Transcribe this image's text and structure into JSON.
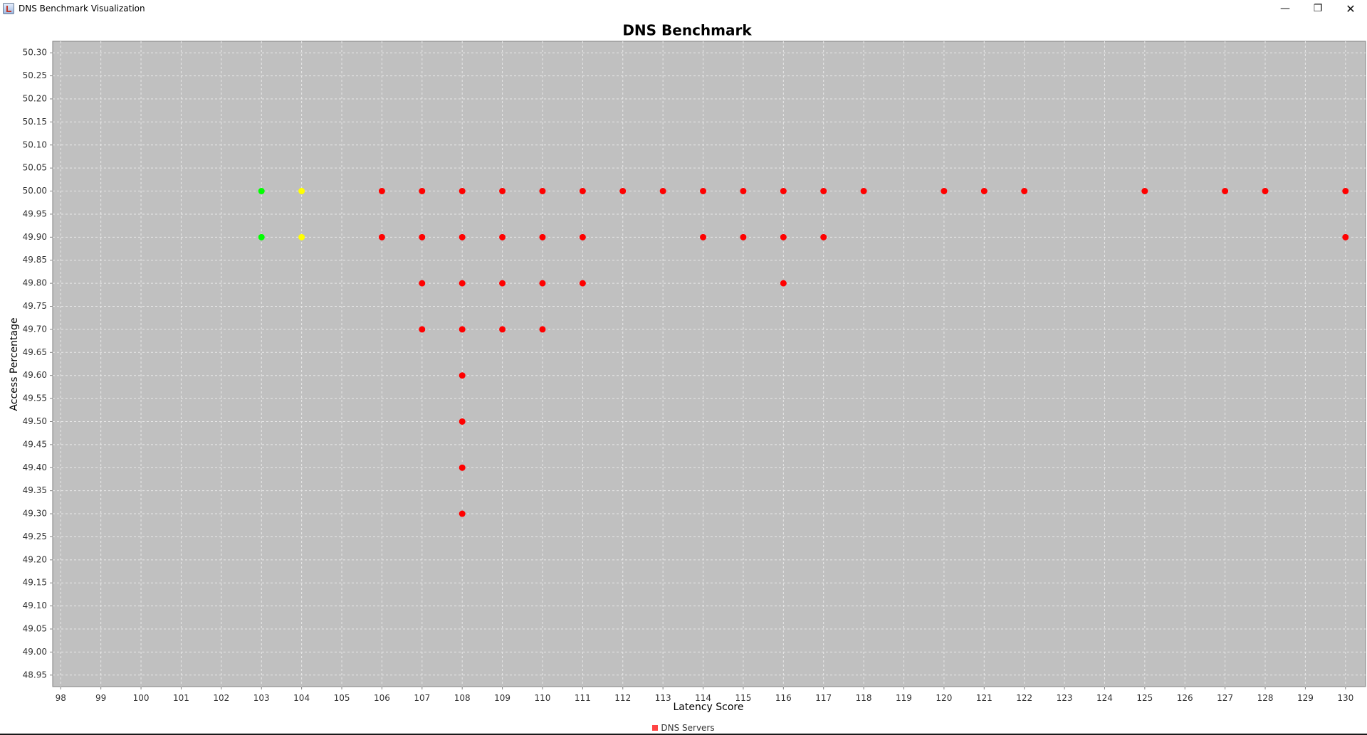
{
  "window": {
    "title": "DNS Benchmark Visualization",
    "minimize_glyph": "—",
    "restore_glyph": "❐",
    "close_glyph": "✕"
  },
  "colors": {
    "plot_bg": "#c0c0c0",
    "grid": "#e8e8e8",
    "best": "#00ff00",
    "second": "#ffff00",
    "normal": "#ff0000"
  },
  "legend": {
    "label": "DNS Servers",
    "swatch_color": "#ff4444"
  },
  "chart_data": {
    "type": "scatter",
    "title": "DNS Benchmark",
    "xlabel": "Latency Score",
    "ylabel": "Access Percentage",
    "xlim": [
      97.8,
      130.5
    ],
    "ylim": [
      48.925,
      50.325
    ],
    "x_ticks": [
      98,
      99,
      100,
      101,
      102,
      103,
      104,
      105,
      106,
      107,
      108,
      109,
      110,
      111,
      112,
      113,
      114,
      115,
      116,
      117,
      118,
      119,
      120,
      121,
      122,
      123,
      124,
      125,
      126,
      127,
      128,
      129,
      130
    ],
    "y_ticks": [
      "50.30",
      "50.25",
      "50.20",
      "50.15",
      "50.10",
      "50.05",
      "50.00",
      "49.95",
      "49.90",
      "49.85",
      "49.80",
      "49.75",
      "49.70",
      "49.65",
      "49.60",
      "49.55",
      "49.50",
      "49.45",
      "49.40",
      "49.35",
      "49.30",
      "49.25",
      "49.20",
      "49.15",
      "49.10",
      "49.05",
      "49.00",
      "48.95"
    ],
    "grid": true,
    "legend_position": "bottom-center",
    "points": [
      {
        "x": 103,
        "y": 50.0,
        "color": "#00ff00"
      },
      {
        "x": 103,
        "y": 49.9,
        "color": "#00ff00"
      },
      {
        "x": 104,
        "y": 50.0,
        "color": "#ffff00"
      },
      {
        "x": 104,
        "y": 49.9,
        "color": "#ffff00"
      },
      {
        "x": 106,
        "y": 50.0,
        "color": "#ff0000"
      },
      {
        "x": 106,
        "y": 49.9,
        "color": "#ff0000"
      },
      {
        "x": 107,
        "y": 50.0,
        "color": "#ff0000"
      },
      {
        "x": 107,
        "y": 49.9,
        "color": "#ff0000"
      },
      {
        "x": 107,
        "y": 49.8,
        "color": "#ff0000"
      },
      {
        "x": 107,
        "y": 49.7,
        "color": "#ff0000"
      },
      {
        "x": 108,
        "y": 50.0,
        "color": "#ff0000"
      },
      {
        "x": 108,
        "y": 49.9,
        "color": "#ff0000"
      },
      {
        "x": 108,
        "y": 49.8,
        "color": "#ff0000"
      },
      {
        "x": 108,
        "y": 49.7,
        "color": "#ff0000"
      },
      {
        "x": 108,
        "y": 49.6,
        "color": "#ff0000"
      },
      {
        "x": 108,
        "y": 49.5,
        "color": "#ff0000"
      },
      {
        "x": 108,
        "y": 49.4,
        "color": "#ff0000"
      },
      {
        "x": 108,
        "y": 49.3,
        "color": "#ff0000"
      },
      {
        "x": 109,
        "y": 50.0,
        "color": "#ff0000"
      },
      {
        "x": 109,
        "y": 49.9,
        "color": "#ff0000"
      },
      {
        "x": 109,
        "y": 49.8,
        "color": "#ff0000"
      },
      {
        "x": 109,
        "y": 49.7,
        "color": "#ff0000"
      },
      {
        "x": 110,
        "y": 50.0,
        "color": "#ff0000"
      },
      {
        "x": 110,
        "y": 49.9,
        "color": "#ff0000"
      },
      {
        "x": 110,
        "y": 49.8,
        "color": "#ff0000"
      },
      {
        "x": 110,
        "y": 49.7,
        "color": "#ff0000"
      },
      {
        "x": 111,
        "y": 50.0,
        "color": "#ff0000"
      },
      {
        "x": 111,
        "y": 49.9,
        "color": "#ff0000"
      },
      {
        "x": 111,
        "y": 49.8,
        "color": "#ff0000"
      },
      {
        "x": 112,
        "y": 50.0,
        "color": "#ff0000"
      },
      {
        "x": 113,
        "y": 50.0,
        "color": "#ff0000"
      },
      {
        "x": 114,
        "y": 50.0,
        "color": "#ff0000"
      },
      {
        "x": 114,
        "y": 49.9,
        "color": "#ff0000"
      },
      {
        "x": 115,
        "y": 50.0,
        "color": "#ff0000"
      },
      {
        "x": 115,
        "y": 49.9,
        "color": "#ff0000"
      },
      {
        "x": 116,
        "y": 50.0,
        "color": "#ff0000"
      },
      {
        "x": 116,
        "y": 49.9,
        "color": "#ff0000"
      },
      {
        "x": 116,
        "y": 49.8,
        "color": "#ff0000"
      },
      {
        "x": 117,
        "y": 50.0,
        "color": "#ff0000"
      },
      {
        "x": 117,
        "y": 49.9,
        "color": "#ff0000"
      },
      {
        "x": 118,
        "y": 50.0,
        "color": "#ff0000"
      },
      {
        "x": 120,
        "y": 50.0,
        "color": "#ff0000"
      },
      {
        "x": 121,
        "y": 50.0,
        "color": "#ff0000"
      },
      {
        "x": 122,
        "y": 50.0,
        "color": "#ff0000"
      },
      {
        "x": 125,
        "y": 50.0,
        "color": "#ff0000"
      },
      {
        "x": 127,
        "y": 50.0,
        "color": "#ff0000"
      },
      {
        "x": 128,
        "y": 50.0,
        "color": "#ff0000"
      },
      {
        "x": 130,
        "y": 50.0,
        "color": "#ff0000"
      },
      {
        "x": 130,
        "y": 49.9,
        "color": "#ff0000"
      }
    ]
  }
}
